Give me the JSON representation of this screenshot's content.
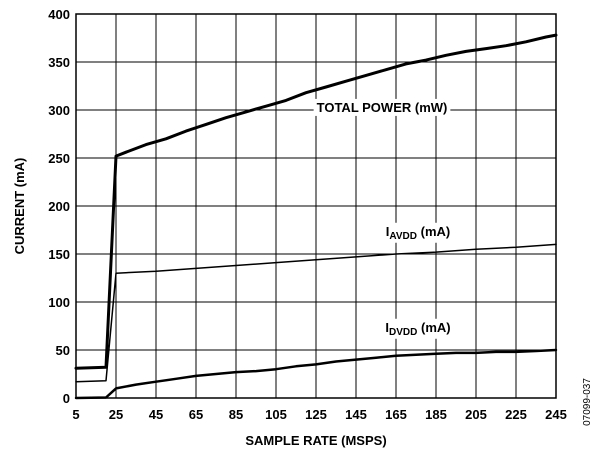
{
  "chart_data": {
    "type": "line",
    "xlabel": "SAMPLE RATE (MSPS)",
    "ylabel": "CURRENT (mA)",
    "xlim": [
      5,
      245
    ],
    "ylim": [
      0,
      400
    ],
    "xticks": [
      5,
      25,
      45,
      65,
      85,
      105,
      125,
      145,
      165,
      185,
      205,
      225,
      245
    ],
    "yticks": [
      0,
      50,
      100,
      150,
      200,
      250,
      300,
      350,
      400
    ],
    "grid": true,
    "figure_id": "07099-037",
    "series": [
      {
        "key": "total_power",
        "name": "TOTAL POWER (mW)",
        "label_main": "TOTAL POWER (mW)",
        "label_sub": "",
        "label_tail": "",
        "stroke": 3,
        "points": [
          [
            5,
            31
          ],
          [
            20,
            32
          ],
          [
            25,
            252
          ],
          [
            30,
            256
          ],
          [
            40,
            264
          ],
          [
            50,
            270
          ],
          [
            60,
            278
          ],
          [
            70,
            285
          ],
          [
            80,
            292
          ],
          [
            90,
            298
          ],
          [
            100,
            304
          ],
          [
            110,
            310
          ],
          [
            120,
            318
          ],
          [
            130,
            324
          ],
          [
            140,
            330
          ],
          [
            150,
            336
          ],
          [
            160,
            342
          ],
          [
            170,
            348
          ],
          [
            180,
            352
          ],
          [
            190,
            357
          ],
          [
            200,
            361
          ],
          [
            210,
            364
          ],
          [
            220,
            367
          ],
          [
            230,
            371
          ],
          [
            240,
            376
          ],
          [
            245,
            378
          ]
        ]
      },
      {
        "key": "iavdd",
        "name": "IAVDD (mA)",
        "label_main": "I",
        "label_sub": "AVDD",
        "label_tail": " (mA)",
        "stroke": 1.5,
        "points": [
          [
            5,
            17
          ],
          [
            20,
            18
          ],
          [
            25,
            130
          ],
          [
            45,
            132
          ],
          [
            65,
            135
          ],
          [
            85,
            138
          ],
          [
            105,
            141
          ],
          [
            125,
            144
          ],
          [
            145,
            147
          ],
          [
            165,
            150
          ],
          [
            185,
            152
          ],
          [
            205,
            155
          ],
          [
            225,
            157
          ],
          [
            245,
            160
          ]
        ]
      },
      {
        "key": "idvdd",
        "name": "IDVDD (mA)",
        "label_main": "I",
        "label_sub": "DVDD",
        "label_tail": " (mA)",
        "stroke": 2.5,
        "points": [
          [
            5,
            0
          ],
          [
            20,
            0.5
          ],
          [
            25,
            10
          ],
          [
            35,
            14
          ],
          [
            45,
            17
          ],
          [
            55,
            20
          ],
          [
            65,
            23
          ],
          [
            75,
            25
          ],
          [
            85,
            27
          ],
          [
            95,
            28
          ],
          [
            105,
            30
          ],
          [
            115,
            33
          ],
          [
            125,
            35
          ],
          [
            135,
            38
          ],
          [
            145,
            40
          ],
          [
            155,
            42
          ],
          [
            165,
            44
          ],
          [
            175,
            45
          ],
          [
            185,
            46
          ],
          [
            195,
            47
          ],
          [
            205,
            47
          ],
          [
            215,
            48
          ],
          [
            225,
            48
          ],
          [
            235,
            49
          ],
          [
            245,
            50
          ]
        ]
      }
    ]
  }
}
